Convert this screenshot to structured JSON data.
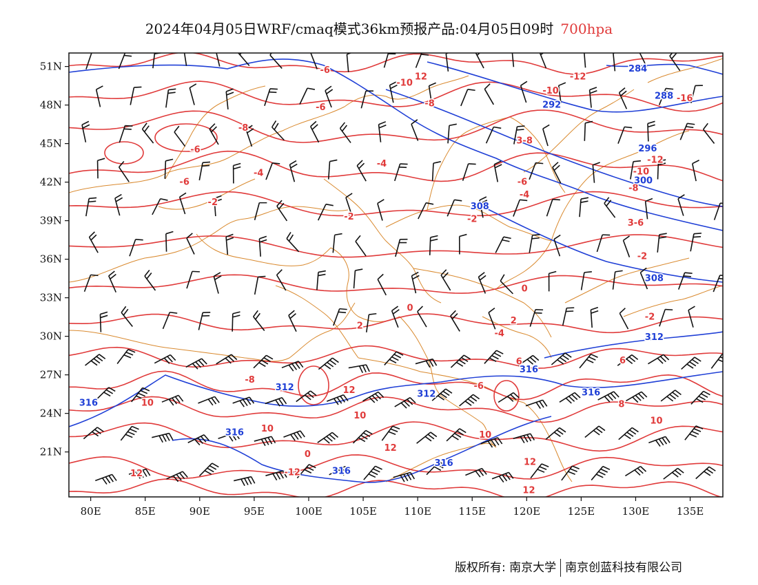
{
  "title": {
    "main": "2024年04月05日WRF/cmaq模式36km预报产品:04月05日09时",
    "level": "700hpa"
  },
  "axes": {
    "lat_ticks": [
      "51N",
      "48N",
      "45N",
      "42N",
      "39N",
      "36N",
      "33N",
      "30N",
      "27N",
      "24N",
      "21N"
    ],
    "lon_ticks": [
      "80E",
      "85E",
      "90E",
      "95E",
      "100E",
      "105E",
      "110E",
      "115E",
      "120E",
      "125E",
      "130E",
      "135E"
    ]
  },
  "colors": {
    "temperature": "#e03a3a",
    "height": "#1f3fd6",
    "boundary": "#d9892e",
    "wind": "#111111"
  },
  "temperature_labels": [
    {
      "text": "-6",
      "lon": 101.5,
      "lat": 50.5
    },
    {
      "text": "-10",
      "lon": 108.8,
      "lat": 49.5
    },
    {
      "text": "12",
      "lon": 110.3,
      "lat": 50.0
    },
    {
      "text": "-12",
      "lon": 124.7,
      "lat": 50.0
    },
    {
      "text": "-10",
      "lon": 122.2,
      "lat": 48.9
    },
    {
      "text": "-16",
      "lon": 134.5,
      "lat": 48.3
    },
    {
      "text": "-8",
      "lon": 111.1,
      "lat": 47.9
    },
    {
      "text": "-6",
      "lon": 101.1,
      "lat": 47.6
    },
    {
      "text": "-8",
      "lon": 94.0,
      "lat": 46.0
    },
    {
      "text": "3-8",
      "lon": 119.8,
      "lat": 45.0
    },
    {
      "text": "-6",
      "lon": 89.6,
      "lat": 44.3
    },
    {
      "text": "-12",
      "lon": 131.8,
      "lat": 43.5
    },
    {
      "text": "-4",
      "lon": 106.7,
      "lat": 43.2
    },
    {
      "text": "-10",
      "lon": 130.5,
      "lat": 42.6
    },
    {
      "text": "-4",
      "lon": 95.4,
      "lat": 42.5
    },
    {
      "text": "-6",
      "lon": 88.6,
      "lat": 41.8
    },
    {
      "text": "-6",
      "lon": 119.6,
      "lat": 41.8
    },
    {
      "text": "-8",
      "lon": 129.8,
      "lat": 41.3
    },
    {
      "text": "-4",
      "lon": 119.8,
      "lat": 40.8
    },
    {
      "text": "-2",
      "lon": 91.2,
      "lat": 40.2
    },
    {
      "text": "-2",
      "lon": 103.7,
      "lat": 39.1
    },
    {
      "text": "-2",
      "lon": 115.0,
      "lat": 38.9
    },
    {
      "text": "3-6",
      "lon": 130.0,
      "lat": 38.6
    },
    {
      "text": "-2",
      "lon": 130.6,
      "lat": 36.0
    },
    {
      "text": "0",
      "lon": 119.8,
      "lat": 33.5
    },
    {
      "text": "0",
      "lon": 109.3,
      "lat": 32.0
    },
    {
      "text": "2",
      "lon": 118.8,
      "lat": 31.0
    },
    {
      "text": "-2",
      "lon": 131.3,
      "lat": 31.3
    },
    {
      "text": "2",
      "lon": 104.7,
      "lat": 30.6
    },
    {
      "text": "-4",
      "lon": 117.5,
      "lat": 30.0
    },
    {
      "text": "6",
      "lon": 128.8,
      "lat": 27.9
    },
    {
      "text": "6",
      "lon": 119.3,
      "lat": 27.8
    },
    {
      "text": "-8",
      "lon": 94.6,
      "lat": 26.4
    },
    {
      "text": "-6",
      "lon": 115.6,
      "lat": 25.9
    },
    {
      "text": "12",
      "lon": 103.7,
      "lat": 25.6
    },
    {
      "text": "10",
      "lon": 85.2,
      "lat": 24.6
    },
    {
      "text": "8",
      "lon": 128.7,
      "lat": 24.5
    },
    {
      "text": "10",
      "lon": 104.7,
      "lat": 23.6
    },
    {
      "text": "10",
      "lon": 131.9,
      "lat": 23.2
    },
    {
      "text": "10",
      "lon": 96.2,
      "lat": 22.6
    },
    {
      "text": "10",
      "lon": 116.2,
      "lat": 22.1
    },
    {
      "text": "12",
      "lon": 107.5,
      "lat": 21.1
    },
    {
      "text": "0",
      "lon": 99.9,
      "lat": 20.6
    },
    {
      "text": "12",
      "lon": 120.3,
      "lat": 20.0
    },
    {
      "text": "-12",
      "lon": 98.5,
      "lat": 19.2
    },
    {
      "text": "12",
      "lon": 84.2,
      "lat": 19.1
    },
    {
      "text": "12",
      "lon": 120.2,
      "lat": 17.8
    }
  ],
  "height_labels": [
    {
      "text": "284",
      "lon": 130.2,
      "lat": 50.6
    },
    {
      "text": "288",
      "lon": 132.6,
      "lat": 48.5
    },
    {
      "text": "292",
      "lon": 122.3,
      "lat": 47.8
    },
    {
      "text": "296",
      "lon": 131.1,
      "lat": 44.4
    },
    {
      "text": "300",
      "lon": 130.7,
      "lat": 41.9
    },
    {
      "text": "308",
      "lon": 115.7,
      "lat": 39.9
    },
    {
      "text": "308",
      "lon": 131.7,
      "lat": 34.3
    },
    {
      "text": "312",
      "lon": 131.7,
      "lat": 29.7
    },
    {
      "text": "316",
      "lon": 120.2,
      "lat": 27.2
    },
    {
      "text": "312",
      "lon": 97.8,
      "lat": 25.8
    },
    {
      "text": "312",
      "lon": 110.8,
      "lat": 25.3
    },
    {
      "text": "316",
      "lon": 125.9,
      "lat": 25.4
    },
    {
      "text": "316",
      "lon": 79.8,
      "lat": 24.6
    },
    {
      "text": "316",
      "lon": 93.2,
      "lat": 22.3
    },
    {
      "text": "316",
      "lon": 103.0,
      "lat": 19.3
    },
    {
      "text": "316",
      "lon": 112.4,
      "lat": 19.9
    }
  ],
  "credit": {
    "left": "版权所有: 南京大学",
    "right": "南京创蓝科技有限公司"
  }
}
